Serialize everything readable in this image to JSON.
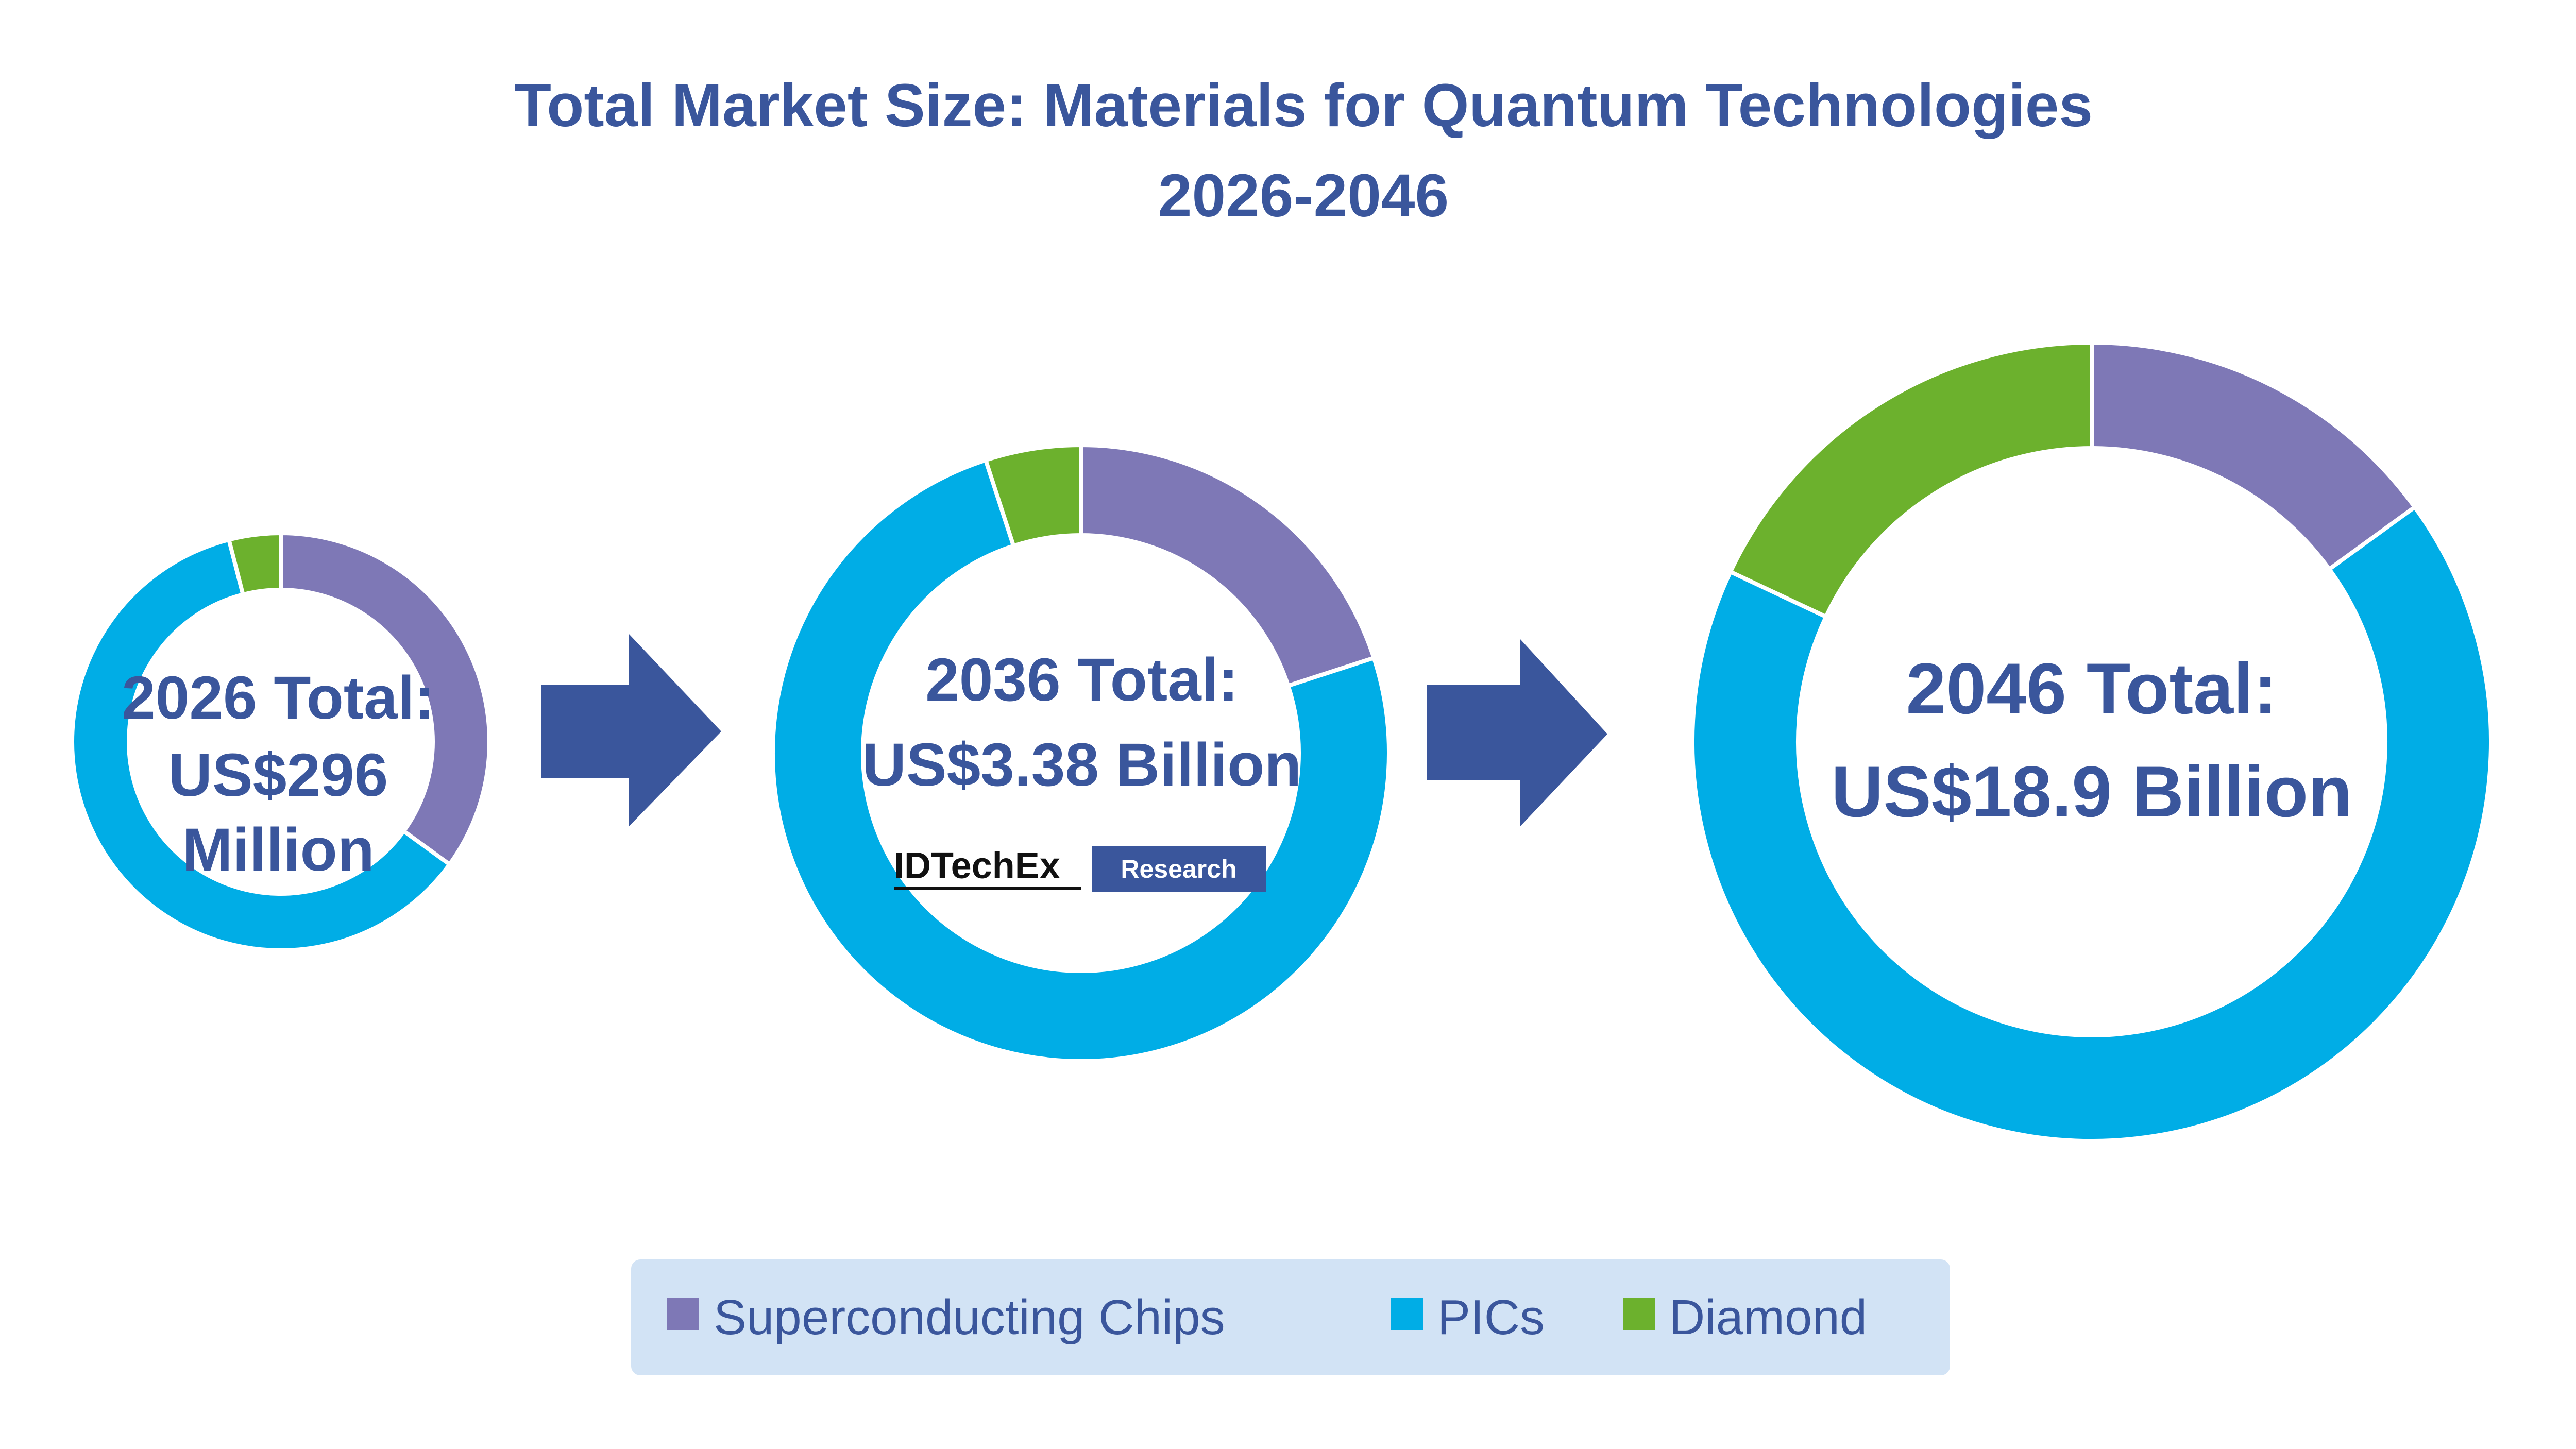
{
  "chart_data": {
    "type": "pie",
    "variant": "donut",
    "title_lines": [
      "Total Market Size: Materials for Quantum Technologies",
      "2026-2046"
    ],
    "categories": [
      "Superconducting Chips",
      "PICs",
      "Diamond"
    ],
    "colors": {
      "Superconducting Chips": "#7e78b6",
      "PICs": "#00ade6",
      "Diamond": "#6cb12d",
      "title": "#3a569c",
      "arrow": "#3a569c",
      "legend_background": "#d2e3f5"
    },
    "legend": {
      "placement": "bottom-center",
      "items": [
        "Superconducting Chips",
        "PICs",
        "Diamond"
      ]
    },
    "donuts": [
      {
        "year": "2026",
        "center_label_lines": [
          "2026 Total:",
          "US$296",
          "Million"
        ],
        "total": 296,
        "unit": "US$ Million",
        "series": [
          {
            "name": "Superconducting Chips",
            "share_percent": 35
          },
          {
            "name": "PICs",
            "share_percent": 61
          },
          {
            "name": "Diamond",
            "share_percent": 4
          }
        ]
      },
      {
        "year": "2036",
        "center_label_lines": [
          "2036 Total:",
          "US$3.38 Billion"
        ],
        "total": 3.38,
        "unit": "US$ Billion",
        "series": [
          {
            "name": "Superconducting Chips",
            "share_percent": 20
          },
          {
            "name": "PICs",
            "share_percent": 75
          },
          {
            "name": "Diamond",
            "share_percent": 5
          }
        ]
      },
      {
        "year": "2046",
        "center_label_lines": [
          "2046 Total:",
          "US$18.9 Billion"
        ],
        "total": 18.9,
        "unit": "US$ Billion",
        "series": [
          {
            "name": "Superconducting Chips",
            "share_percent": 15
          },
          {
            "name": "PICs",
            "share_percent": 67
          },
          {
            "name": "Diamond",
            "share_percent": 18
          }
        ]
      }
    ]
  },
  "logo": {
    "text_part_a": "IDTechEx",
    "text_part_b": "Research"
  }
}
